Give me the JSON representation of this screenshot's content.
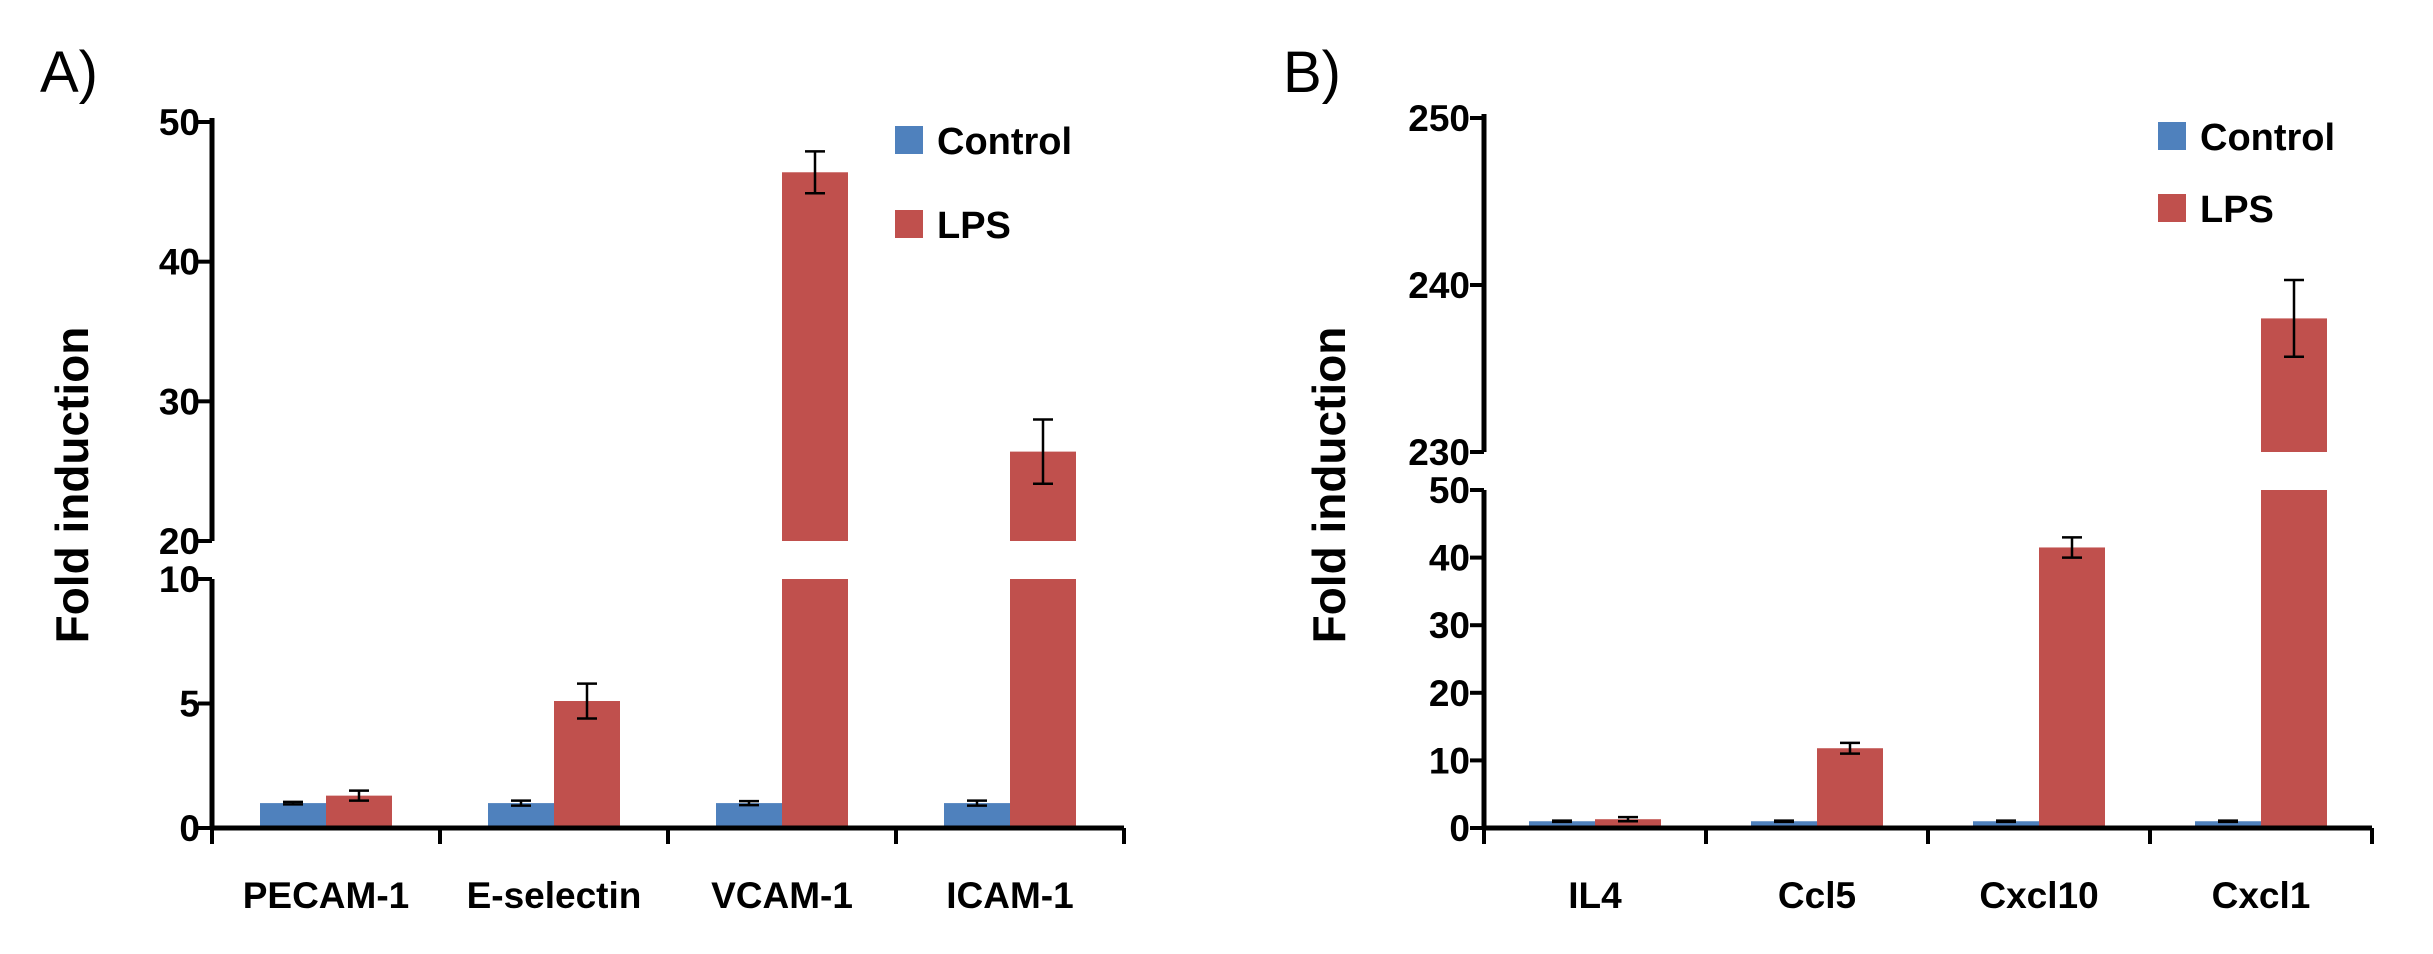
{
  "chart_data": [
    {
      "type": "bar",
      "panel": "A)",
      "ylabel": "Fold induction",
      "xlabel": "",
      "categories": [
        "PECAM-1",
        "E-selectin",
        "VCAM-1",
        "ICAM-1"
      ],
      "axis_break": true,
      "lower_segment": {
        "ylim": [
          0,
          10
        ],
        "ticks": [
          "0",
          "5",
          "10"
        ]
      },
      "upper_segment": {
        "ylim": [
          20,
          50
        ],
        "ticks": [
          "20",
          "30",
          "40",
          "50"
        ]
      },
      "series": [
        {
          "name": "Control",
          "color": "#4F81BD",
          "values": [
            1.0,
            1.0,
            1.0,
            1.0
          ],
          "errors": [
            0.05,
            0.1,
            0.08,
            0.1
          ]
        },
        {
          "name": "LPS",
          "color": "#C0504D",
          "values": [
            1.3,
            5.1,
            46.4,
            26.4
          ],
          "errors": [
            0.2,
            0.7,
            1.5,
            2.3
          ]
        }
      ],
      "legend": [
        "Control",
        "LPS"
      ],
      "legend_position": "top-right"
    },
    {
      "type": "bar",
      "panel": "B)",
      "ylabel": "Fold induction",
      "xlabel": "",
      "categories": [
        "IL4",
        "Ccl5",
        "Cxcl10",
        "Cxcl1"
      ],
      "axis_break": true,
      "lower_segment": {
        "ylim": [
          0,
          50
        ],
        "ticks": [
          "0",
          "10",
          "20",
          "30",
          "40",
          "50"
        ]
      },
      "upper_segment": {
        "ylim": [
          230,
          250
        ],
        "ticks": [
          "230",
          "240",
          "250"
        ]
      },
      "series": [
        {
          "name": "Control",
          "color": "#4F81BD",
          "values": [
            1.0,
            1.0,
            1.0,
            1.0
          ],
          "errors": [
            0.1,
            0.1,
            0.1,
            0.1
          ]
        },
        {
          "name": "LPS",
          "color": "#C0504D",
          "values": [
            1.3,
            11.8,
            41.5,
            238.0
          ],
          "errors": [
            0.3,
            0.8,
            1.5,
            2.3
          ]
        }
      ],
      "legend": [
        "Control",
        "LPS"
      ],
      "legend_position": "top-right"
    }
  ]
}
